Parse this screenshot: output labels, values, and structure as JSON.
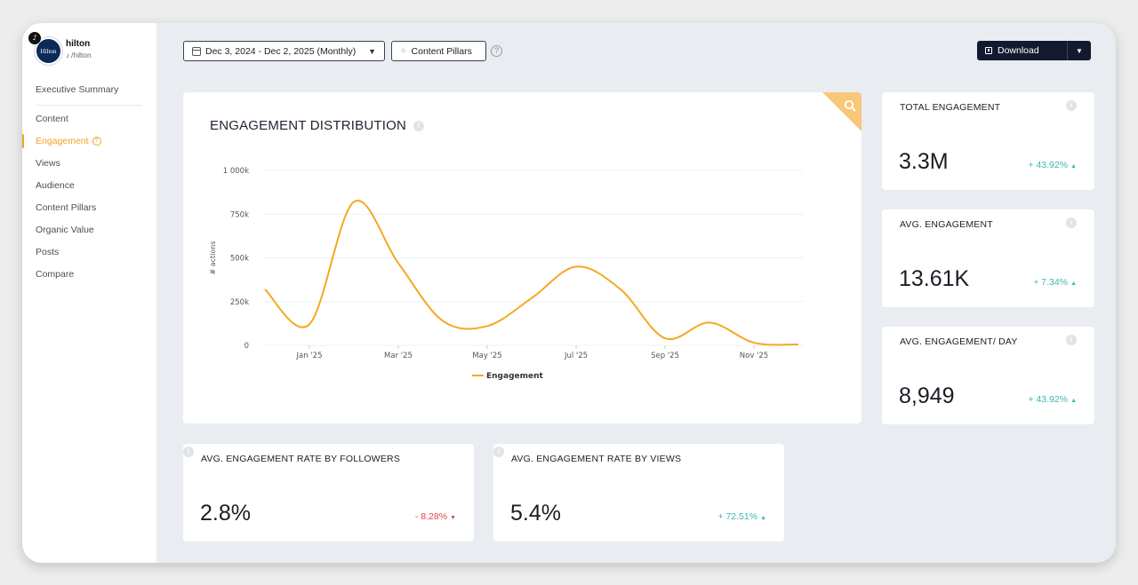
{
  "profile": {
    "name": "hilton",
    "handle": "/hilton",
    "avatar_text": "Hilton"
  },
  "sidebar": {
    "items": [
      {
        "label": "Executive Summary"
      },
      {
        "label": "Content"
      },
      {
        "label": "Engagement"
      },
      {
        "label": "Views"
      },
      {
        "label": "Audience"
      },
      {
        "label": "Content Pillars"
      },
      {
        "label": "Organic Value"
      },
      {
        "label": "Posts"
      },
      {
        "label": "Compare"
      }
    ],
    "active_index": 2
  },
  "toolbar": {
    "date_range": "Dec 3, 2024 - Dec 2, 2025 (Monthly)",
    "pillars_label": "Content Pillars",
    "download_label": "Download"
  },
  "colors": {
    "accent": "#f2a51f",
    "positive": "#3bb8b0",
    "negative": "#e0474c",
    "dark": "#131a2f"
  },
  "chart": {
    "title": "ENGAGEMENT DISTRIBUTION"
  },
  "chart_data": {
    "type": "line",
    "title": "ENGAGEMENT DISTRIBUTION",
    "xlabel": "",
    "ylabel": "# actions",
    "ylim": [
      0,
      1000000
    ],
    "y_ticks": [
      0,
      250000,
      500000,
      750000,
      1000000
    ],
    "y_tick_labels": [
      "0",
      "250k",
      "500k",
      "750k",
      "1 000k"
    ],
    "x_ticks": [
      "Jan '25",
      "Mar '25",
      "May '25",
      "Jul '25",
      "Sep '25",
      "Nov '25"
    ],
    "grid": true,
    "legend": "bottom-center",
    "series": [
      {
        "name": "Engagement",
        "color": "#f5a81f",
        "x": [
          "Dec '24",
          "Jan '25",
          "Feb '25",
          "Mar '25",
          "Apr '25",
          "May '25",
          "Jun '25",
          "Jul '25",
          "Aug '25",
          "Sep '25",
          "Oct '25",
          "Nov '25",
          "Dec '25"
        ],
        "values": [
          320000,
          120000,
          820000,
          470000,
          140000,
          110000,
          270000,
          450000,
          320000,
          40000,
          130000,
          15000,
          5000
        ]
      }
    ]
  },
  "kpis": [
    {
      "label": "TOTAL ENGAGEMENT",
      "value": "3.3M",
      "change": "+ 43.92%",
      "direction": "up"
    },
    {
      "label": "AVG. ENGAGEMENT",
      "value": "13.61K",
      "change": "+ 7.34%",
      "direction": "up"
    },
    {
      "label": "AVG. ENGAGEMENT/ DAY",
      "value": "8,949",
      "change": "+ 43.92%",
      "direction": "up"
    }
  ],
  "rates": [
    {
      "label": "AVG. ENGAGEMENT RATE BY FOLLOWERS",
      "value": "2.8%",
      "change": "- 8.28%",
      "direction": "down"
    },
    {
      "label": "AVG. ENGAGEMENT RATE BY VIEWS",
      "value": "5.4%",
      "change": "+ 72.51%",
      "direction": "up"
    }
  ]
}
